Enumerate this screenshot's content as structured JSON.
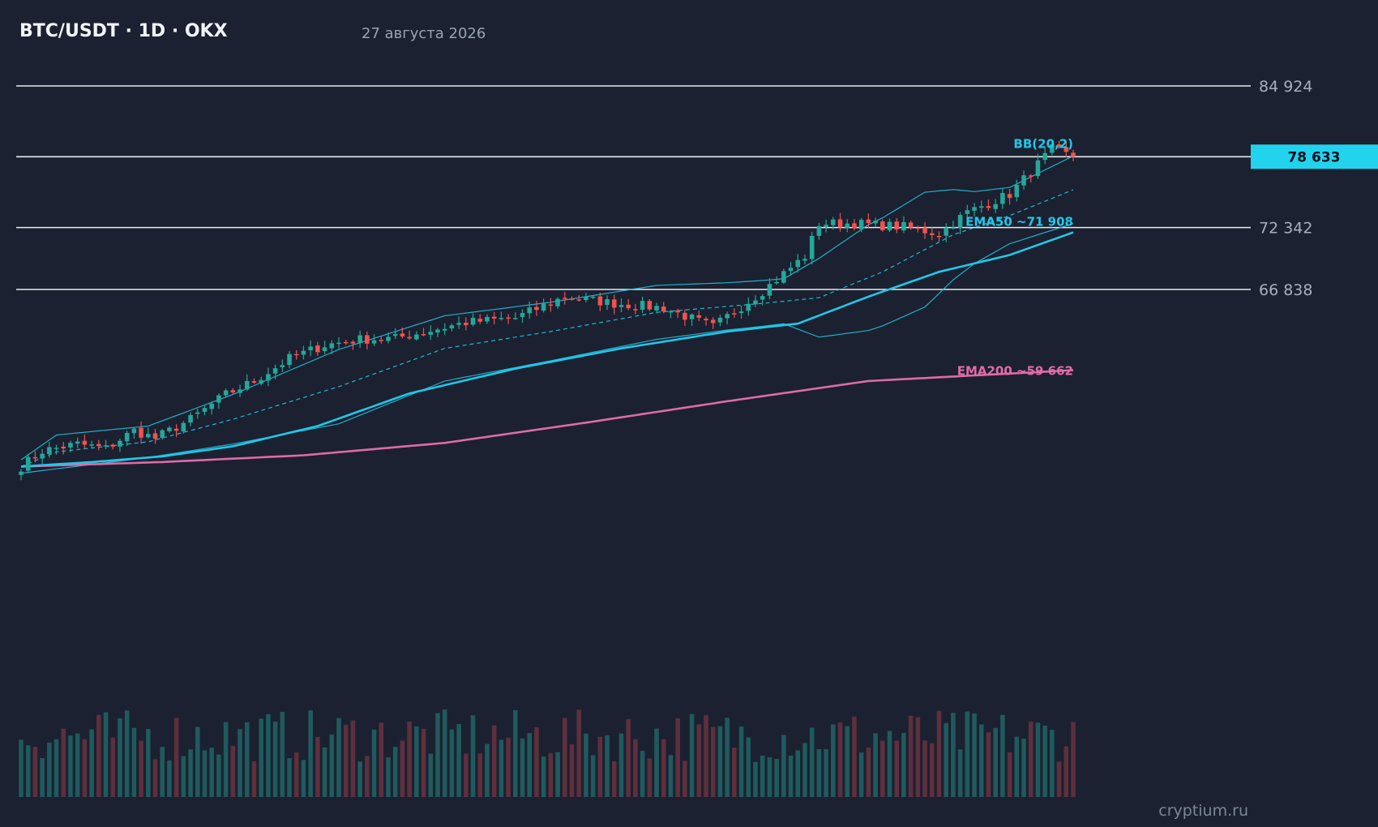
{
  "header": {
    "title": "BTC/USDT · 1D · OKX",
    "date": "27 августа 2026"
  },
  "watermark": "cryptium.ru",
  "colors": {
    "background": "#1b2130",
    "up": "#26a69a",
    "down": "#ef5350",
    "ema50": "#22c7e8",
    "ema200": "#e06aa9",
    "bollinger": "#22c7e8",
    "price_tag": "#22d3ee",
    "levels": "#e8ebf0"
  },
  "chart_data": {
    "type": "candlestick",
    "symbol": "BTC/USDT",
    "timeframe": "1D",
    "exchange": "OKX",
    "ylim": [
      50700,
      87300
    ],
    "current_price": 78633,
    "current_price_label": "78 633",
    "levels": [
      {
        "value": 84924,
        "label": "84 924"
      },
      {
        "value": 78633,
        "label": "78 633",
        "current": true
      },
      {
        "value": 72342,
        "label": "72 342"
      },
      {
        "value": 66838,
        "label": "66 838"
      }
    ],
    "indicators": [
      {
        "name": "BB(20,2)",
        "label": "BB(20,2)",
        "color": "#22c7e8"
      },
      {
        "name": "EMA50",
        "label": "EMA50 ~71 908",
        "value": 71908,
        "color": "#22c7e8"
      },
      {
        "name": "EMA200",
        "label": "EMA200 ~59 662",
        "value": 59662,
        "color": "#e06aa9"
      }
    ],
    "close_anchors": [
      [
        0,
        51100
      ],
      [
        3,
        52500
      ],
      [
        8,
        53100
      ],
      [
        12,
        52700
      ],
      [
        16,
        54300
      ],
      [
        19,
        53600
      ],
      [
        24,
        55300
      ],
      [
        29,
        57500
      ],
      [
        33,
        58700
      ],
      [
        38,
        60700
      ],
      [
        43,
        61900
      ],
      [
        48,
        62400
      ],
      [
        53,
        62500
      ],
      [
        58,
        63200
      ],
      [
        63,
        63900
      ],
      [
        70,
        64300
      ],
      [
        77,
        66200
      ],
      [
        84,
        65600
      ],
      [
        91,
        65200
      ],
      [
        98,
        63500
      ],
      [
        105,
        66700
      ],
      [
        111,
        69800
      ],
      [
        113,
        72700
      ],
      [
        118,
        72700
      ],
      [
        125,
        72400
      ],
      [
        130,
        71800
      ],
      [
        134,
        73700
      ],
      [
        140,
        75300
      ],
      [
        146,
        79300
      ],
      [
        149,
        78600
      ]
    ],
    "candles_count": 150,
    "ema50_anchors": [
      [
        0,
        51100
      ],
      [
        10,
        51500
      ],
      [
        20,
        52000
      ],
      [
        30,
        52900
      ],
      [
        42,
        54700
      ],
      [
        55,
        57600
      ],
      [
        70,
        59800
      ],
      [
        85,
        61600
      ],
      [
        100,
        63100
      ],
      [
        110,
        63800
      ],
      [
        120,
        66200
      ],
      [
        130,
        68400
      ],
      [
        140,
        69900
      ],
      [
        149,
        71908
      ]
    ],
    "ema200_anchors": [
      [
        0,
        51100
      ],
      [
        20,
        51500
      ],
      [
        40,
        52100
      ],
      [
        60,
        53200
      ],
      [
        80,
        55000
      ],
      [
        100,
        56900
      ],
      [
        120,
        58700
      ],
      [
        149,
        59662
      ]
    ],
    "bb_mid_anchors": [
      [
        0,
        51100
      ],
      [
        5,
        52400
      ],
      [
        18,
        53300
      ],
      [
        30,
        55300
      ],
      [
        45,
        58200
      ],
      [
        60,
        61600
      ],
      [
        75,
        63100
      ],
      [
        90,
        64800
      ],
      [
        105,
        65600
      ],
      [
        113,
        66100
      ],
      [
        122,
        68400
      ],
      [
        132,
        71700
      ],
      [
        140,
        73400
      ],
      [
        149,
        75700
      ]
    ],
    "bb_width_anchors": [
      [
        0,
        600
      ],
      [
        5,
        1500
      ],
      [
        18,
        1400
      ],
      [
        30,
        2200
      ],
      [
        45,
        3300
      ],
      [
        60,
        2900
      ],
      [
        75,
        2600
      ],
      [
        90,
        2400
      ],
      [
        100,
        2100
      ],
      [
        108,
        2000
      ],
      [
        113,
        3500
      ],
      [
        120,
        4700
      ],
      [
        128,
        5100
      ],
      [
        135,
        3200
      ],
      [
        140,
        2500
      ],
      [
        149,
        3000
      ]
    ],
    "volume_range": [
      0.2,
      1.0
    ]
  }
}
